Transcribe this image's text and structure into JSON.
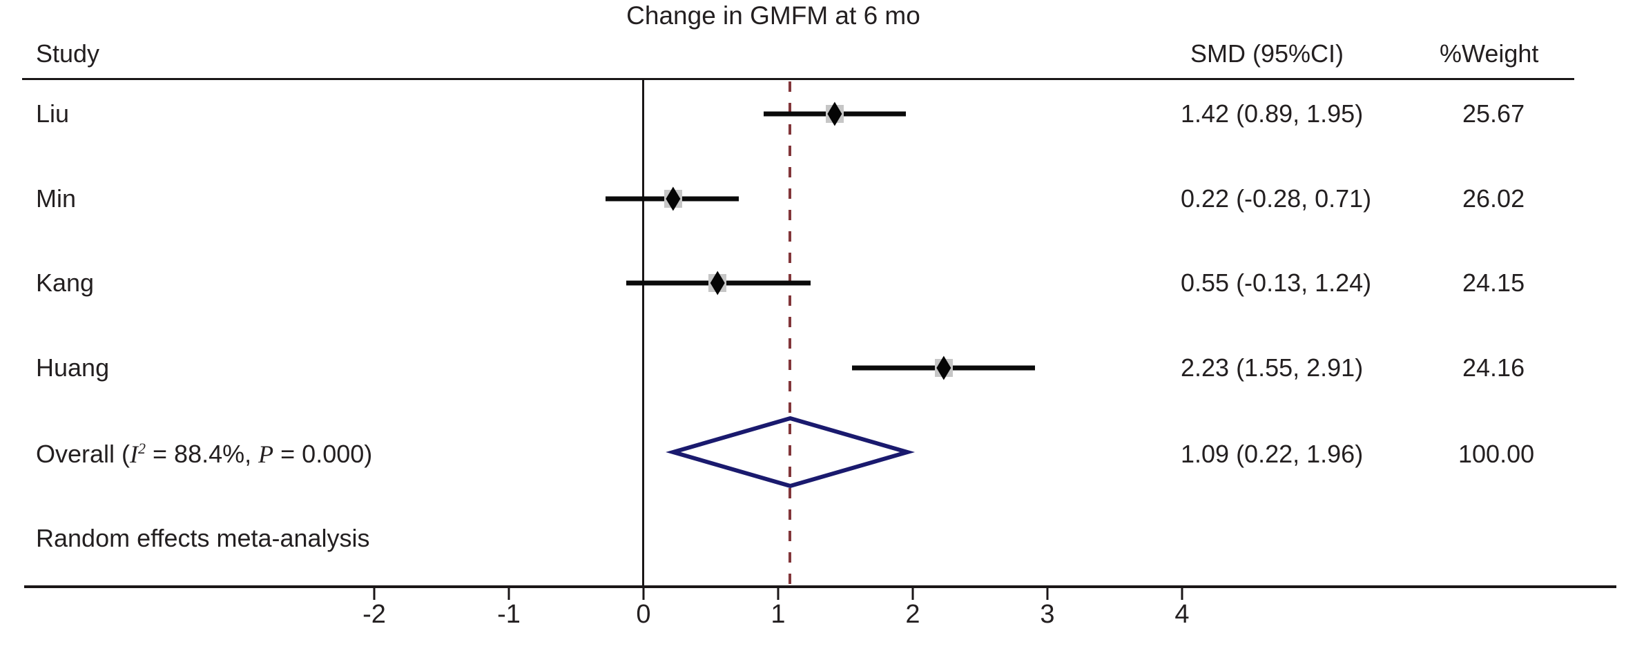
{
  "title": "Change in GMFM at 6 mo",
  "columns": {
    "study": "Study",
    "smd": "SMD (95%CI)",
    "weight": "%Weight"
  },
  "footnote": "Random effects meta-analysis",
  "chart_data": {
    "type": "forest",
    "title": "Change in GMFM at 6 mo",
    "studies": [
      {
        "name": "Liu",
        "smd": 1.42,
        "ci_low": 0.89,
        "ci_high": 1.95,
        "smd_label": "1.42 (0.89, 1.95)",
        "weight_label": "25.67",
        "weight": 25.67
      },
      {
        "name": "Min",
        "smd": 0.22,
        "ci_low": -0.28,
        "ci_high": 0.71,
        "smd_label": "0.22 (-0.28, 0.71)",
        "weight_label": "26.02",
        "weight": 26.02
      },
      {
        "name": "Kang",
        "smd": 0.55,
        "ci_low": -0.13,
        "ci_high": 1.24,
        "smd_label": "0.55 (-0.13, 1.24)",
        "weight_label": "24.15",
        "weight": 24.15
      },
      {
        "name": "Huang",
        "smd": 2.23,
        "ci_low": 1.55,
        "ci_high": 2.91,
        "smd_label": "2.23 (1.55, 2.91)",
        "weight_label": "24.16",
        "weight": 24.16
      }
    ],
    "overall": {
      "smd": 1.09,
      "ci_low": 0.22,
      "ci_high": 1.96,
      "smd_label": "1.09 (0.22, 1.96)",
      "weight_label": "100.00",
      "label_pre": "Overall (",
      "label_i": "I",
      "label_sup": "2",
      "label_mid": " = 88.4%, ",
      "label_p": "P",
      "label_post": " = 0.000)",
      "heterogeneity_i2": "88.4%",
      "p_value": "0.000"
    },
    "axis": {
      "tick_values": [
        -2,
        -1,
        0,
        1,
        2,
        3,
        4
      ],
      "tick_labels": [
        "-2",
        "-1",
        "0",
        "1",
        "2",
        "3",
        "4"
      ],
      "null_line_x": 0,
      "overall_line_x": 1.09,
      "xlim": [
        -2.8,
        4.7
      ]
    },
    "model": "random-effects",
    "colors": {
      "diamond_stroke": "#1a1a6e",
      "dashed_line": "#82363a",
      "marker_box": "#c6c6c6",
      "marker_diamond": "#050505",
      "line": "#1a1617",
      "text": "#231f20",
      "background": "#ffffff"
    }
  }
}
